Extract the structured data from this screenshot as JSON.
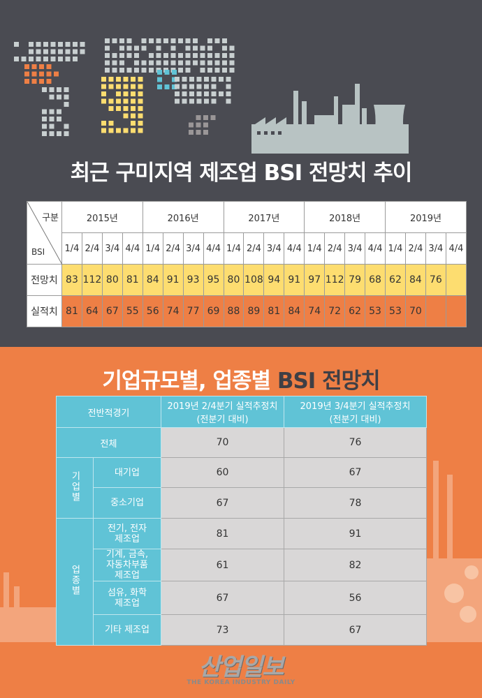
{
  "title1": "최근 구미지역 제조업 BSI 전망치 추이",
  "bsi_table": {
    "corner_top": "구분",
    "corner_bottom": "BSI",
    "years": [
      "2015년",
      "2016년",
      "2017년",
      "2018년",
      "2019년"
    ],
    "quarters": [
      "1/4",
      "2/4",
      "3/4",
      "4/4"
    ],
    "rows": [
      {
        "label": "전망치",
        "values": [
          "83",
          "112",
          "80",
          "81",
          "84",
          "91",
          "93",
          "95",
          "80",
          "108",
          "94",
          "91",
          "97",
          "112",
          "79",
          "68",
          "62",
          "84",
          "76",
          ""
        ]
      },
      {
        "label": "실적치",
        "values": [
          "81",
          "64",
          "67",
          "55",
          "56",
          "74",
          "77",
          "69",
          "88",
          "89",
          "81",
          "84",
          "74",
          "72",
          "62",
          "53",
          "53",
          "70",
          "",
          ""
        ]
      }
    ]
  },
  "title2_main": "기업규모별, 업종별 ",
  "title2_accent": "BSI 전망치",
  "segment_table": {
    "header": [
      "전반적경기",
      "2019년 2/4분기 실적추정치\n(전분기 대비)",
      "2019년 3/4분기 실적추정치\n(전분기 대비)"
    ],
    "header_cols": [
      [
        "2019년 2/4분기 실적추정치",
        "(전분기 대비)"
      ],
      [
        "2019년 3/4분기 실적추정치",
        "(전분기 대비)"
      ]
    ],
    "total": {
      "label": "전체",
      "q2": "70",
      "q3": "76"
    },
    "groups": [
      {
        "label": "기업별",
        "rows": [
          {
            "label": "대기업",
            "q2": "60",
            "q3": "67"
          },
          {
            "label": "중소기업",
            "q2": "67",
            "q3": "78"
          }
        ]
      },
      {
        "label": "업종별",
        "rows": [
          {
            "label": "전기, 전자\n제조업",
            "q2": "81",
            "q3": "91"
          },
          {
            "label": "기계, 금속,\n자동차부품\n제조업",
            "q2": "61",
            "q3": "82"
          },
          {
            "label": "섬유, 화학\n제조업",
            "q2": "67",
            "q3": "56"
          },
          {
            "label": "기타 제조업",
            "q2": "73",
            "q3": "67"
          }
        ]
      }
    ]
  },
  "logo": {
    "korean": "산업일보",
    "english": "THE KOREA INDUSTRY DAILY"
  },
  "colors": {
    "dark_bg": "#4a4b52",
    "orange": "#ee7f45",
    "yellow": "#fddd70",
    "cyan": "#60c3d6",
    "gray_cell": "#d9d7d7"
  }
}
